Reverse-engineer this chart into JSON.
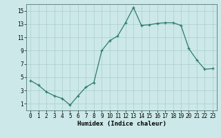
{
  "x": [
    0,
    1,
    2,
    3,
    4,
    5,
    6,
    7,
    8,
    9,
    10,
    11,
    12,
    13,
    14,
    15,
    16,
    17,
    18,
    19,
    20,
    21,
    22,
    23
  ],
  "y": [
    4.5,
    3.8,
    2.8,
    2.2,
    1.8,
    0.8,
    2.2,
    3.5,
    4.2,
    9.0,
    10.5,
    11.2,
    13.2,
    15.5,
    12.8,
    12.9,
    13.1,
    13.2,
    13.2,
    12.8,
    9.3,
    7.6,
    6.2,
    6.3
  ],
  "line_color": "#2d7a6f",
  "marker": "+",
  "markersize": 3,
  "markeredgewidth": 0.9,
  "linewidth": 0.9,
  "bg_color": "#cce8e8",
  "grid_color": "#aacece",
  "xlabel": "Humidex (Indice chaleur)",
  "ylim": [
    0,
    16
  ],
  "xlim": [
    -0.5,
    23.5
  ],
  "yticks": [
    1,
    3,
    5,
    7,
    9,
    11,
    13,
    15
  ],
  "xticks": [
    0,
    1,
    2,
    3,
    4,
    5,
    6,
    7,
    8,
    9,
    10,
    11,
    12,
    13,
    14,
    15,
    16,
    17,
    18,
    19,
    20,
    21,
    22,
    23
  ],
  "xlabel_fontsize": 6.5,
  "tick_fontsize": 5.5
}
